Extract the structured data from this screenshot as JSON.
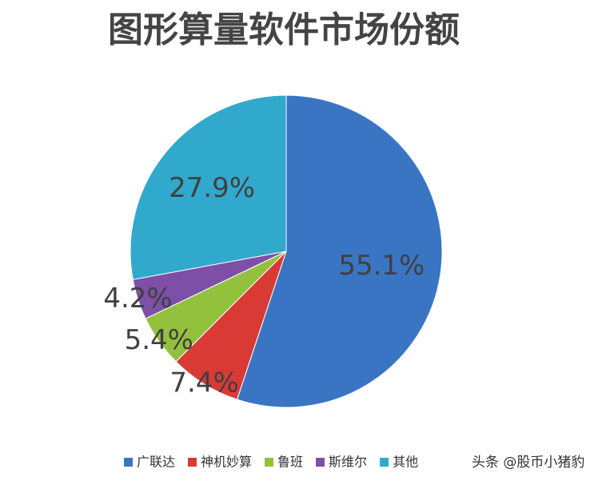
{
  "chart_data": {
    "type": "pie",
    "title": "图形算量软件市场份额",
    "categories": [
      "广联达",
      "神机妙算",
      "鲁班",
      "斯维尔",
      "其他"
    ],
    "values": [
      55.1,
      7.4,
      5.4,
      4.2,
      27.9
    ],
    "value_labels": [
      "55.1%",
      "7.4%",
      "5.4%",
      "4.2%",
      "27.9%"
    ],
    "colors": [
      "#3a75c4",
      "#d93a36",
      "#93c13d",
      "#7d4fa6",
      "#31a9cc"
    ],
    "legend": "bottom",
    "watermark": "头条 @股币小猪豹"
  }
}
